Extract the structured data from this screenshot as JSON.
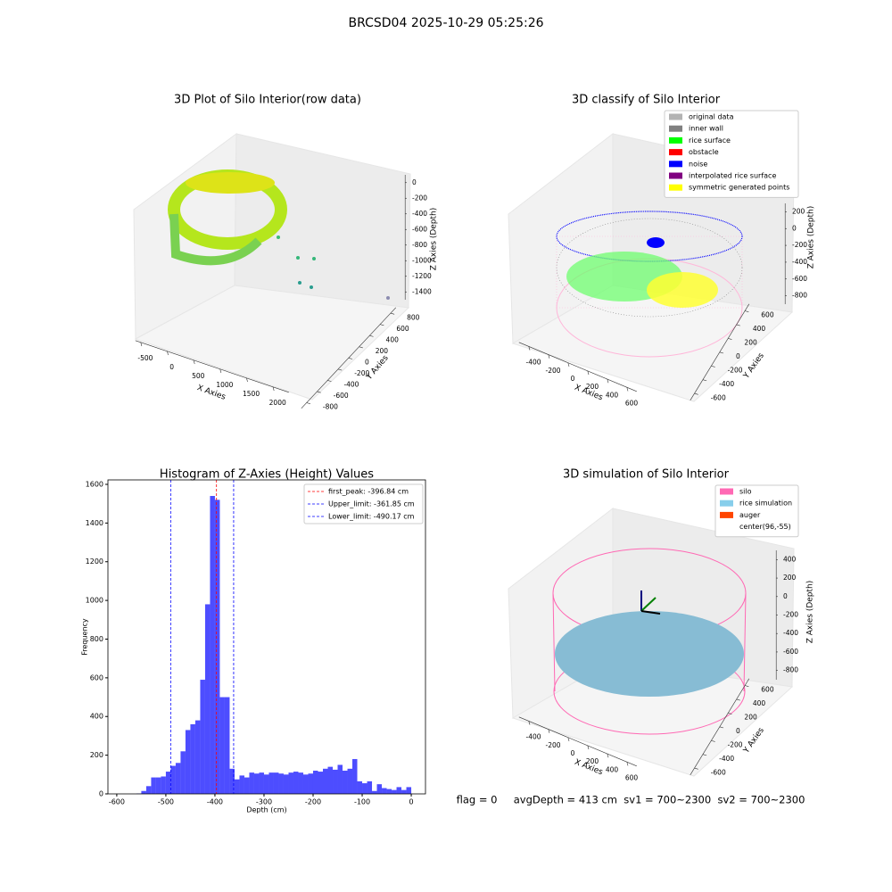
{
  "title": "BRCSD04 2025-10-29 05:25:26",
  "footer": "flag = 0     avgDepth = 413 cm  sv1 = 700~2300  sv2 = 700~2300",
  "chart_data": [
    {
      "type": "scatter3d",
      "title": "3D Plot of Silo Interior(row data)",
      "xlabel": "X Axies",
      "ylabel": "Y Axies",
      "zlabel": "Z Axies (Depth)",
      "xlim": [
        -600,
        2300
      ],
      "ylim": [
        -900,
        900
      ],
      "zlim": [
        -1500,
        100
      ],
      "xticks": [
        -500,
        0,
        500,
        1000,
        1500,
        2000
      ],
      "yticks": [
        -800,
        -600,
        -400,
        -200,
        0,
        200,
        400,
        600,
        800
      ],
      "zticks": [
        -1400,
        -1200,
        -1000,
        -800,
        -600,
        -400,
        -200,
        0
      ],
      "series": []
    },
    {
      "type": "scatter3d",
      "title": "3D classify of Silo Interior",
      "xlabel": "X Axies",
      "ylabel": "Y Axies",
      "zlabel": "Z Axies (Depth)",
      "xlim": [
        -500,
        700
      ],
      "ylim": [
        -700,
        700
      ],
      "zlim": [
        -900,
        300
      ],
      "xticks": [
        -400,
        -200,
        0,
        200,
        400,
        600
      ],
      "yticks": [
        -600,
        -400,
        -200,
        0,
        200,
        400,
        600
      ],
      "zticks": [
        -800,
        -600,
        -400,
        -200,
        0,
        200
      ],
      "series": [
        {
          "name": "original data",
          "color": "#b3b3b3"
        },
        {
          "name": "inner wall",
          "color": "#808080"
        },
        {
          "name": "rice surface",
          "color": "#00ff00"
        },
        {
          "name": "obstacle",
          "color": "#ff0000"
        },
        {
          "name": "noise",
          "color": "#0000ff"
        },
        {
          "name": "interpolated rice surface",
          "color": "#800080"
        },
        {
          "name": "symmetric generated points",
          "color": "#ffff00"
        }
      ]
    },
    {
      "type": "histogram",
      "title": "Histogram of Z-Axies (Height) Values",
      "xlabel": "Depth (cm)",
      "ylabel": "Frequency",
      "color": "#4d4dff",
      "xlim": [
        -618,
        29
      ],
      "ylim": [
        0,
        1623
      ],
      "xticks": [
        -600,
        -500,
        -400,
        -300,
        -200,
        -100,
        0
      ],
      "yticks": [
        0,
        200,
        400,
        600,
        800,
        1000,
        1200,
        1400,
        1600
      ],
      "bins": [
        -560,
        -550,
        -540,
        -530,
        -520,
        -510,
        -500,
        -490,
        -480,
        -470,
        -460,
        -450,
        -440,
        -430,
        -420,
        -410,
        -400,
        -390,
        -380,
        -370,
        -360,
        -350,
        -340,
        -330,
        -320,
        -310,
        -300,
        -290,
        -280,
        -270,
        -260,
        -250,
        -240,
        -230,
        -220,
        -210,
        -200,
        -190,
        -180,
        -170,
        -160,
        -150,
        -140,
        -130,
        -120,
        -110,
        -100,
        -90,
        -80,
        -70,
        -60,
        -50,
        -40,
        -30,
        -20,
        -10,
        0
      ],
      "counts": [
        2,
        15,
        40,
        85,
        85,
        90,
        115,
        145,
        160,
        220,
        330,
        360,
        380,
        590,
        980,
        1540,
        1520,
        500,
        500,
        130,
        75,
        95,
        85,
        110,
        105,
        110,
        100,
        110,
        110,
        105,
        100,
        110,
        115,
        110,
        100,
        105,
        120,
        115,
        130,
        140,
        125,
        150,
        120,
        130,
        180,
        65,
        55,
        65,
        15,
        50,
        30,
        25,
        20,
        35,
        20,
        35
      ],
      "lines": [
        {
          "label": "first_peak: -396.84 cm",
          "value": -396.84,
          "color": "#ff0000"
        },
        {
          "label": "Upper_limit: -361.85 cm",
          "value": -361.85,
          "color": "#0000ff"
        },
        {
          "label": "Lower_limit: -490.17 cm",
          "value": -490.17,
          "color": "#0000ff"
        }
      ]
    },
    {
      "type": "scatter3d",
      "title": "3D simulation of Silo Interior",
      "xlabel": "X Axies",
      "ylabel": "Y Axies",
      "zlabel": "Z Axies (Depth)",
      "xlim": [
        -500,
        700
      ],
      "ylim": [
        -700,
        700
      ],
      "zlim": [
        -900,
        500
      ],
      "xticks": [
        -400,
        -200,
        0,
        200,
        400,
        600
      ],
      "yticks": [
        -600,
        -400,
        -200,
        0,
        200,
        400,
        600
      ],
      "zticks": [
        -800,
        -600,
        -400,
        -200,
        0,
        200,
        400
      ],
      "series": [
        {
          "name": "silo",
          "color": "#ff69b4"
        },
        {
          "name": "rice simulation",
          "color": "#87ceeb"
        },
        {
          "name": "auger",
          "color": "#ff4500"
        },
        {
          "name": "center(96,-55)",
          "color": "#ffffff"
        }
      ]
    }
  ]
}
